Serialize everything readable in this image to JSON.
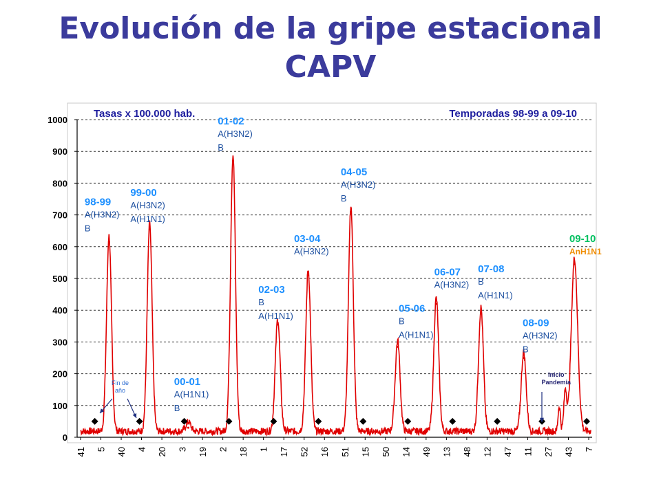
{
  "page": {
    "title_line1": "Evolución de la gripe estacional",
    "title_line2": "CAPV"
  },
  "chart_data": {
    "type": "line",
    "title": "",
    "subtitle_left": "Tasas  x 100.000 hab.",
    "subtitle_right": "Temporadas 98-99 a 09-10",
    "xlabel": "",
    "ylabel": "",
    "ylim": [
      0,
      1000
    ],
    "y_ticks": [
      0,
      100,
      200,
      300,
      400,
      500,
      600,
      700,
      800,
      900,
      1000
    ],
    "x_tick_labels": [
      "41",
      "5",
      "40",
      "4",
      "20",
      "3",
      "19",
      "2",
      "18",
      "1",
      "17",
      "52",
      "16",
      "51",
      "15",
      "50",
      "14",
      "49",
      "13",
      "48",
      "12",
      "47",
      "11",
      "27",
      "43",
      "7"
    ],
    "grid": true,
    "series_color": "#e00000",
    "season_label_color": "#1e90ff",
    "pandemic_label_color": "#00c060",
    "pandemic_virus_color": "#f08c00",
    "peaks": [
      {
        "x": 1.4,
        "value": 615
      },
      {
        "x": 3.4,
        "value": 655
      },
      {
        "x": 5.3,
        "value": 30
      },
      {
        "x": 7.5,
        "value": 870
      },
      {
        "x": 9.7,
        "value": 355
      },
      {
        "x": 11.2,
        "value": 510
      },
      {
        "x": 13.3,
        "value": 710
      },
      {
        "x": 15.6,
        "value": 285
      },
      {
        "x": 17.5,
        "value": 420
      },
      {
        "x": 19.7,
        "value": 390
      },
      {
        "x": 21.8,
        "value": 250
      },
      {
        "x": 24.3,
        "value": 545
      }
    ],
    "season_markers_x": [
      0.7,
      2.9,
      5.1,
      7.3,
      9.5,
      11.7,
      13.9,
      16.1,
      18.3,
      20.5,
      22.7,
      24.9
    ],
    "seasons": [
      {
        "label": "98-99",
        "viruses": [
          "A(H3N2)",
          "B"
        ],
        "lx": 0.2,
        "ly": 730
      },
      {
        "label": "99-00",
        "viruses": [
          "A(H3N2)",
          "A(H1N1)"
        ],
        "lx": 2.45,
        "ly": 760
      },
      {
        "label": "00-01",
        "viruses": [
          "A(H1N1)",
          "B"
        ],
        "lx": 4.6,
        "ly": 165
      },
      {
        "label": "01-02",
        "viruses": [
          "A(H3N2)",
          "B"
        ],
        "lx": 6.75,
        "ly": 985
      },
      {
        "label": "02-03",
        "viruses": [
          "B",
          "A(H1N1)"
        ],
        "lx": 8.75,
        "ly": 455
      },
      {
        "label": "03-04",
        "viruses": [
          "A(H3N2)"
        ],
        "lx": 10.5,
        "ly": 615
      },
      {
        "label": "04-05",
        "viruses": [
          "A(H3N2)",
          "B"
        ],
        "lx": 12.8,
        "ly": 825
      },
      {
        "label": "05-06",
        "viruses": [
          "B",
          "A(H1N1)"
        ],
        "lx": 15.65,
        "ly": 395
      },
      {
        "label": "06-07",
        "viruses": [
          "A(H3N2)"
        ],
        "lx": 17.4,
        "ly": 510
      },
      {
        "label": "07-08",
        "viruses": [
          "B",
          "A(H1N1)"
        ],
        "lx": 19.55,
        "ly": 520
      },
      {
        "label": "08-09",
        "viruses": [
          "A(H3N2)",
          "B"
        ],
        "lx": 21.75,
        "ly": 350
      },
      {
        "label": "09-10",
        "viruses": [
          "AnH1N1"
        ],
        "lx": 24.05,
        "ly": 615
      }
    ],
    "annotations": [
      {
        "text_lines": [
          "Fin de",
          "año"
        ],
        "lx": 1.95,
        "ly": 165
      },
      {
        "text_lines": [
          "Inicio",
          "Pandemia"
        ],
        "lx": 23.4,
        "ly": 190
      }
    ]
  }
}
